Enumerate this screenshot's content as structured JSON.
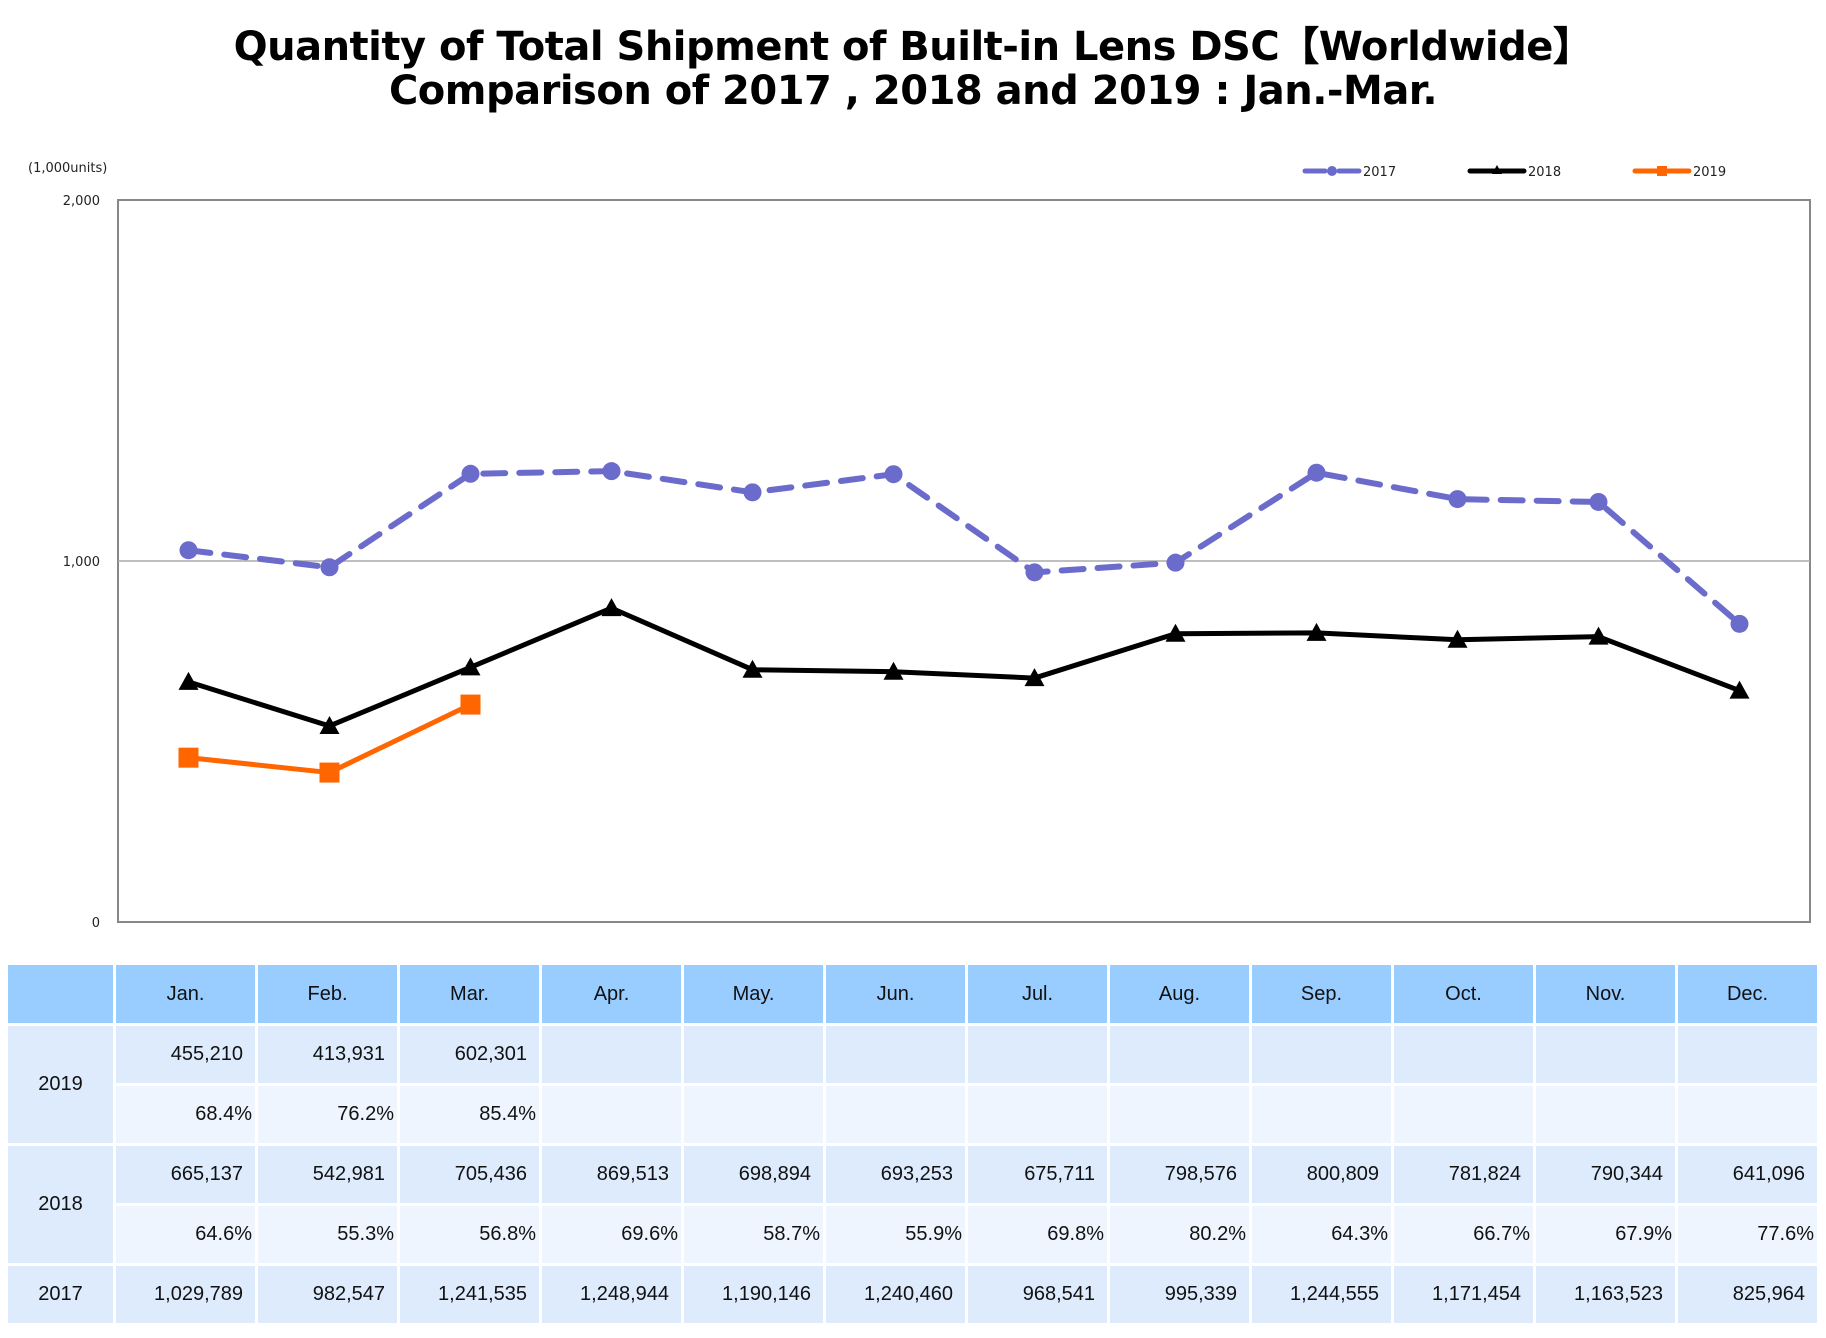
{
  "chart_data": {
    "type": "line",
    "title": "Quantity of Total Shipment of Built-in Lens DSC【Worldwide】",
    "subtitle": "Comparison of 2017 , 2018 and 2019 : Jan.-Mar.",
    "unit_label": "(1,000units)",
    "xlabel": "",
    "ylabel": "(1,000units)",
    "ylim": [
      0,
      2000
    ],
    "yticks": [
      0,
      1000,
      2000
    ],
    "ytick_labels": [
      "0",
      "1,000",
      "2,000"
    ],
    "grid": true,
    "legend_position": "top-right",
    "categories": [
      "Jan.",
      "Feb.",
      "Mar.",
      "Apr.",
      "May.",
      "Jun.",
      "Jul.",
      "Aug.",
      "Sep.",
      "Oct.",
      "Nov.",
      "Dec."
    ],
    "series": [
      {
        "name": "2017",
        "color": "#6B6BCC",
        "style": "dashed",
        "marker": "circle",
        "values": [
          1029.789,
          982.547,
          1241.535,
          1248.944,
          1190.146,
          1240.46,
          968.541,
          995.339,
          1244.555,
          1171.454,
          1163.523,
          825.964
        ]
      },
      {
        "name": "2018",
        "color": "#000000",
        "style": "solid",
        "marker": "triangle",
        "values": [
          665.137,
          542.981,
          705.436,
          869.513,
          698.894,
          693.253,
          675.711,
          798.576,
          800.809,
          781.824,
          790.344,
          641.096
        ]
      },
      {
        "name": "2019",
        "color": "#FF6600",
        "style": "solid",
        "marker": "square",
        "values": [
          455.21,
          413.931,
          602.301
        ]
      }
    ]
  },
  "table": {
    "corner": "",
    "months": [
      "Jan.",
      "Feb.",
      "Mar.",
      "Apr.",
      "May.",
      "Jun.",
      "Jul.",
      "Aug.",
      "Sep.",
      "Oct.",
      "Nov.",
      "Dec."
    ],
    "rows": [
      {
        "year": "2019",
        "values": [
          "455,210",
          "413,931",
          "602,301",
          "",
          "",
          "",
          "",
          "",
          "",
          "",
          "",
          ""
        ],
        "percents": [
          "68.4%",
          "76.2%",
          "85.4%",
          "",
          "",
          "",
          "",
          "",
          "",
          "",
          "",
          ""
        ]
      },
      {
        "year": "2018",
        "values": [
          "665,137",
          "542,981",
          "705,436",
          "869,513",
          "698,894",
          "693,253",
          "675,711",
          "798,576",
          "800,809",
          "781,824",
          "790,344",
          "641,096"
        ],
        "percents": [
          "64.6%",
          "55.3%",
          "56.8%",
          "69.6%",
          "58.7%",
          "55.9%",
          "69.8%",
          "80.2%",
          "64.3%",
          "66.7%",
          "67.9%",
          "77.6%"
        ]
      },
      {
        "year": "2017",
        "values": [
          "1,029,789",
          "982,547",
          "1,241,535",
          "1,248,944",
          "1,190,146",
          "1,240,460",
          "968,541",
          "995,339",
          "1,244,555",
          "1,171,454",
          "1,163,523",
          "825,964"
        ]
      }
    ]
  }
}
